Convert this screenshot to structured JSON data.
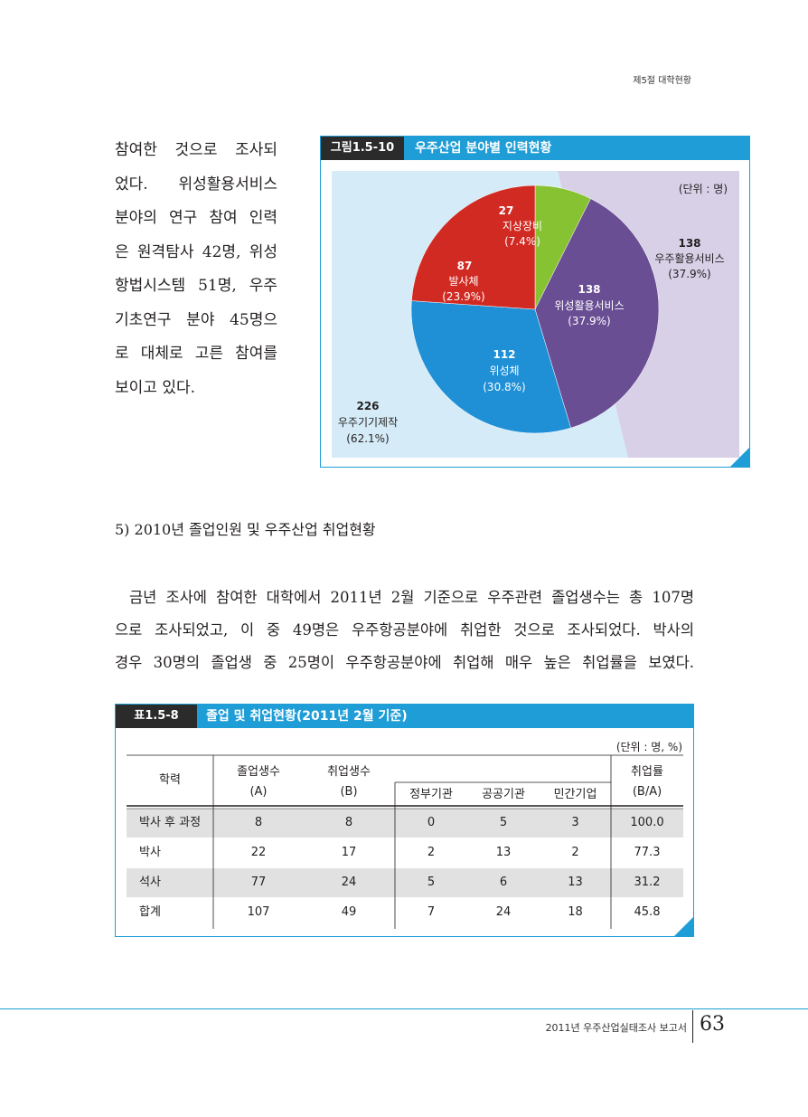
{
  "header": {
    "chapter": "제5절 대학현황"
  },
  "left_text": [
    "참여한 것으로 조사되",
    "었다. 위성활용서비스",
    "분야의 연구 참여 인력",
    "은 원격탐사 42명, 위성",
    "항법시스템 51명, 우주",
    "기초연구 분야 45명으",
    "로 대체로 고른 참여를",
    "보이고 있다."
  ],
  "figure": {
    "label": "그림1.5-10",
    "title": "우주산업 분야별 인력현황",
    "unit": "(단위 : 명)",
    "outer_left": {
      "value": "226",
      "name": "우주기기제작",
      "pct": "(62.1%)"
    },
    "outer_right": {
      "value": "138",
      "name": "우주활용서비스",
      "pct": "(37.9%)"
    },
    "colors": {
      "panel_left": "#d5ecf8",
      "panel_right": "#d8d0e7",
      "border": "#1e9dd6"
    }
  },
  "chart_data": {
    "type": "pie",
    "slices": [
      {
        "value": 27,
        "name": "지상장비",
        "pct": "(7.4%)",
        "color": "#86c232"
      },
      {
        "value": 138,
        "name": "위성활용서비스",
        "pct": "(37.9%)",
        "color": "#6a4e94"
      },
      {
        "value": 112,
        "name": "위성체",
        "pct": "(30.8%)",
        "color": "#1f8fd6"
      },
      {
        "value": 87,
        "name": "발사체",
        "pct": "(23.9%)",
        "color": "#d12a23"
      }
    ]
  },
  "section": {
    "heading": "5) 2010년 졸업인원 및 우주산업 취업현황",
    "paragraph": [
      "금년 조사에 참여한 대학에서 2011년 2월 기준으로 우주관련 졸업생수는 총 107명",
      "으로 조사되었고, 이 중 49명은 우주항공분야에 취업한 것으로 조사되었다. 박사의",
      "경우 30명의 졸업생 중 25명이 우주항공분야에 취업해 매우 높은 취업률을 보였다."
    ]
  },
  "table": {
    "label": "표1.5-8",
    "title": "졸업 및 취업현황(2011년 2월 기준)",
    "unit": "(단위 : 명, %)",
    "header": {
      "degree": "학력",
      "grad_1": "졸업생수",
      "grad_2": "(A)",
      "emp_1": "취업생수",
      "emp_2": "(B)",
      "gov": "정부기관",
      "public": "공공기관",
      "private": "민간기업",
      "rate_1": "취업률",
      "rate_2": "(B/A)"
    },
    "rows": [
      {
        "degree": "박사 후 과정",
        "grad": "8",
        "emp": "8",
        "gov": "0",
        "public": "5",
        "private": "3",
        "rate": "100.0"
      },
      {
        "degree": "박사",
        "grad": "22",
        "emp": "17",
        "gov": "2",
        "public": "13",
        "private": "2",
        "rate": "77.3"
      },
      {
        "degree": "석사",
        "grad": "77",
        "emp": "24",
        "gov": "5",
        "public": "6",
        "private": "13",
        "rate": "31.2"
      },
      {
        "degree": "합계",
        "grad": "107",
        "emp": "49",
        "gov": "7",
        "public": "24",
        "private": "18",
        "rate": "45.8"
      }
    ]
  },
  "footer": {
    "report": "2011년 우주산업실태조사 보고서",
    "page": "63"
  }
}
